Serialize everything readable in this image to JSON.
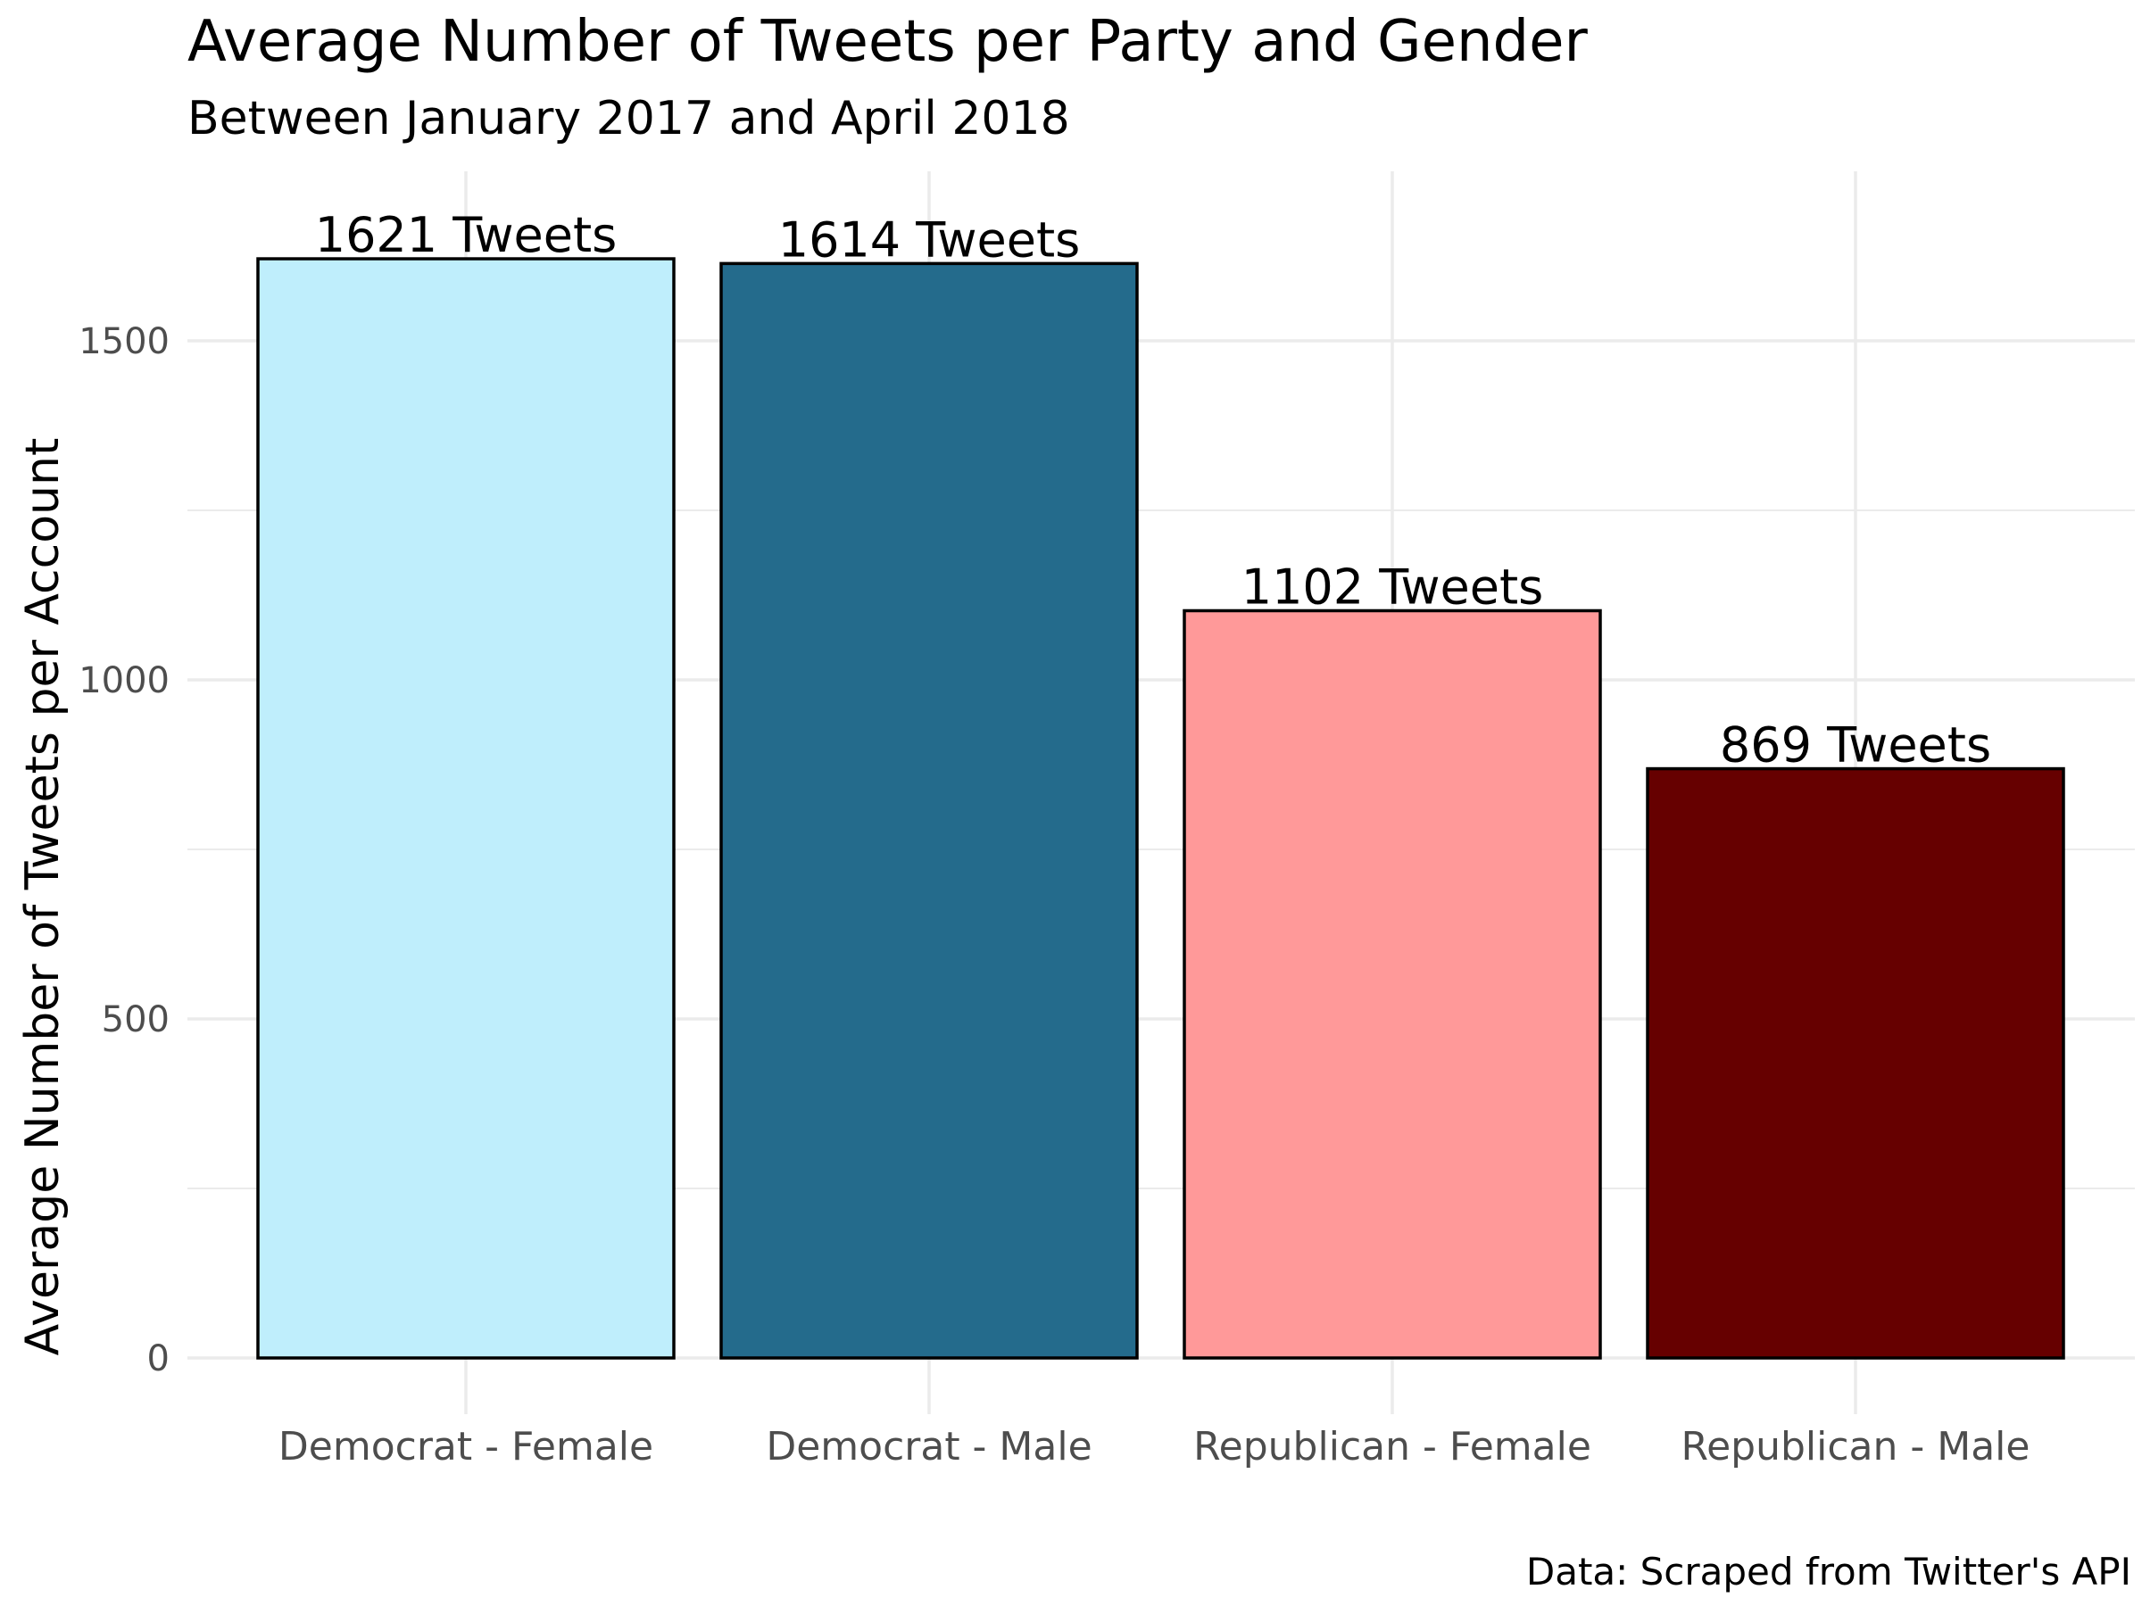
{
  "chart_data": {
    "type": "bar",
    "title": "Average Number of Tweets per Party and Gender",
    "subtitle": "Between January 2017 and April 2018",
    "xlabel": "",
    "ylabel": "Average Number of Tweets per Account",
    "caption": "Data: Scraped from Twitter's API",
    "categories": [
      "Democrat - Female",
      "Democrat - Male",
      "Republican - Female",
      "Republican - Male"
    ],
    "values": [
      1621,
      1614,
      1102,
      869
    ],
    "data_labels": [
      "1621 Tweets",
      "1614 Tweets",
      "1102 Tweets",
      "869 Tweets"
    ],
    "colors": [
      "#bfeefc",
      "#246b8c",
      "#ff9999",
      "#660000"
    ],
    "ylim": [
      0,
      1750
    ],
    "yticks": [
      0,
      500,
      1000,
      1500
    ],
    "ytick_labels": [
      "0",
      "500",
      "1000",
      "1500"
    ],
    "grid": true,
    "legend": "none"
  }
}
